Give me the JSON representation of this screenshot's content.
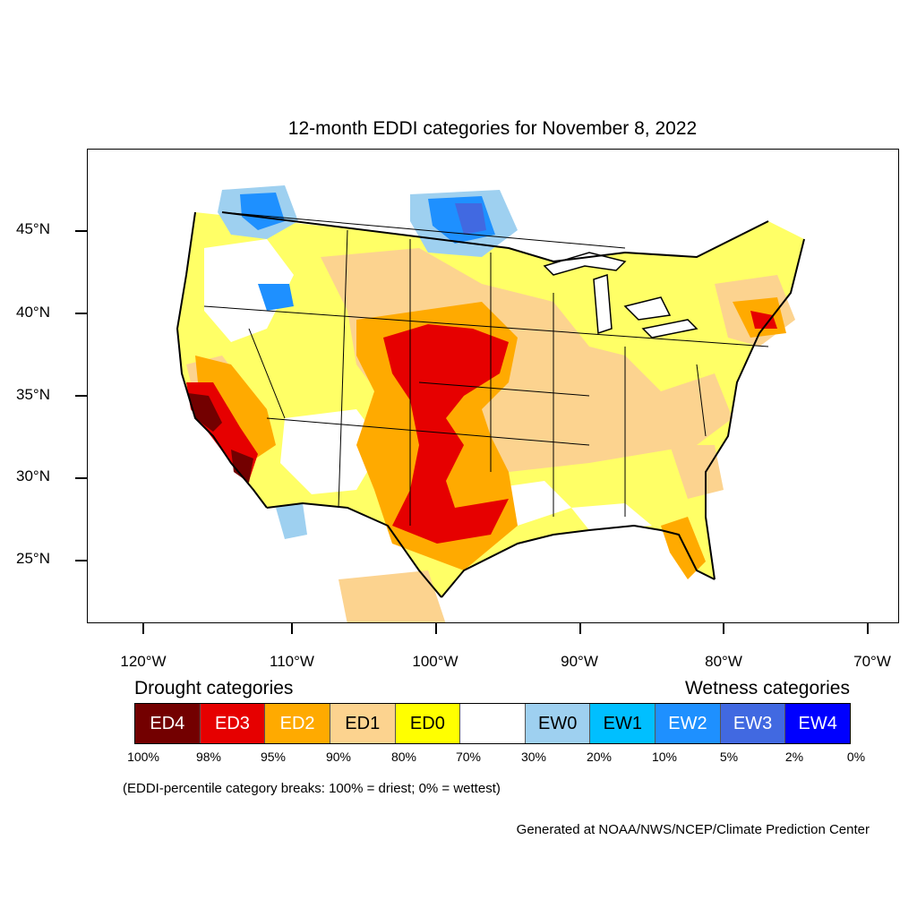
{
  "title": "12-month EDDI categories for November 8, 2022",
  "map": {
    "lat_labels": [
      "45°N",
      "40°N",
      "35°N",
      "30°N",
      "25°N"
    ],
    "lon_labels": [
      "120°W",
      "110°W",
      "100°W",
      "90°W",
      "80°W",
      "70°W"
    ]
  },
  "legend": {
    "drought_title": "Drought categories",
    "wetness_title": "Wetness categories",
    "categories": [
      {
        "label": "ED4",
        "color": "#730000",
        "text_color": "#ffffff"
      },
      {
        "label": "ED3",
        "color": "#e60000",
        "text_color": "#ffffff"
      },
      {
        "label": "ED2",
        "color": "#ffaa00",
        "text_color": "#ffffff"
      },
      {
        "label": "ED1",
        "color": "#fcd38f",
        "text_color": "#000000"
      },
      {
        "label": "ED0",
        "color": "#ffff00",
        "text_color": "#000000"
      },
      {
        "label": "",
        "color": "#ffffff",
        "text_color": "#000000"
      },
      {
        "label": "EW0",
        "color": "#9ed0f0",
        "text_color": "#000000"
      },
      {
        "label": "EW1",
        "color": "#00bfff",
        "text_color": "#000000"
      },
      {
        "label": "EW2",
        "color": "#1e90ff",
        "text_color": "#ffffff"
      },
      {
        "label": "EW3",
        "color": "#4169e1",
        "text_color": "#ffffff"
      },
      {
        "label": "EW4",
        "color": "#0000ff",
        "text_color": "#ffffff"
      }
    ],
    "breaks": [
      "100%",
      "98%",
      "95%",
      "90%",
      "80%",
      "70%",
      "30%",
      "20%",
      "10%",
      "5%",
      "2%",
      "0%"
    ]
  },
  "note": "(EDDI-percentile category breaks: 100% = driest; 0% = wettest)",
  "credit": "Generated at NOAA/NWS/NCEP/Climate Prediction Center"
}
